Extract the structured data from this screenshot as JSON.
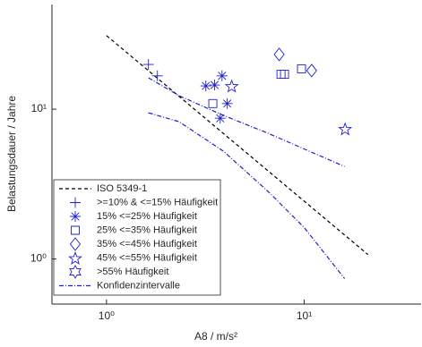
{
  "chart_data": {
    "type": "scatter",
    "x_label": "A8 / m/s²",
    "y_label": "Belastungsdauer / Jahre",
    "log_x": true,
    "log_y": true,
    "xlim": [
      0.53,
      39
    ],
    "ylim": [
      0.5,
      50
    ],
    "xticks": [
      {
        "value": 1,
        "label": "10⁰"
      },
      {
        "value": 10,
        "label": "10¹"
      }
    ],
    "yticks": [
      {
        "value": 1,
        "label": "10⁰"
      },
      {
        "value": 10,
        "label": "10¹"
      }
    ],
    "legend": "lower left",
    "series": [
      {
        "name": "ISO 5349-1",
        "color": "#000000",
        "linestyle": "dashed",
        "marker": "none",
        "x": [
          1,
          21
        ],
        "values": [
          31,
          1.07
        ]
      },
      {
        "name": ">=10% & <=15% Häufigkeit",
        "color": "#1f1fd0",
        "linestyle": "none",
        "marker": "plus",
        "x": [
          1.63,
          1.81
        ],
        "values": [
          19.9,
          16.7
        ]
      },
      {
        "name": "15% <=25% Häufigkeit",
        "color": "#1f1fd0",
        "linestyle": "none",
        "marker": "asterisk",
        "x": [
          3.18,
          3.52,
          3.84,
          3.76,
          4.08
        ],
        "values": [
          14.3,
          14.5,
          16.7,
          8.7,
          10.9
        ]
      },
      {
        "name": "25% <=35% Häufigkeit",
        "color": "#1f1fd0",
        "linestyle": "none",
        "marker": "square",
        "x": [
          3.45,
          7.63,
          7.95,
          9.69
        ],
        "values": [
          10.9,
          17.1,
          17.1,
          18.6
        ]
      },
      {
        "name": "35% <=45% Häufigkeit",
        "color": "#1f1fd0",
        "linestyle": "none",
        "marker": "diamond",
        "x": [
          7.47,
          10.9
        ],
        "values": [
          23.2,
          18.1
        ]
      },
      {
        "name": "45% <=55% Häufigkeit",
        "color": "#1f1fd0",
        "linestyle": "none",
        "marker": "pentagram",
        "x": [
          4.3,
          16.1
        ],
        "values": [
          14.3,
          7.4
        ]
      },
      {
        "name": ">55% Häufigkeit",
        "color": "#1f1fd0",
        "linestyle": "none",
        "marker": "hexagram",
        "x": [],
        "values": []
      },
      {
        "name": "Konfidenzintervalle",
        "color": "#1f1fd0",
        "linestyle": "dashdot",
        "marker": "none",
        "x": [
          1.63,
          2.33,
          3.91,
          6.59,
          16.0,
          null,
          1.63,
          2.33,
          3.91,
          6.59,
          10,
          16.0
        ],
        "values": [
          16.2,
          12.3,
          9.08,
          6.89,
          4.14,
          null,
          9.46,
          8.25,
          5.23,
          2.81,
          1.62,
          0.74
        ]
      }
    ]
  }
}
